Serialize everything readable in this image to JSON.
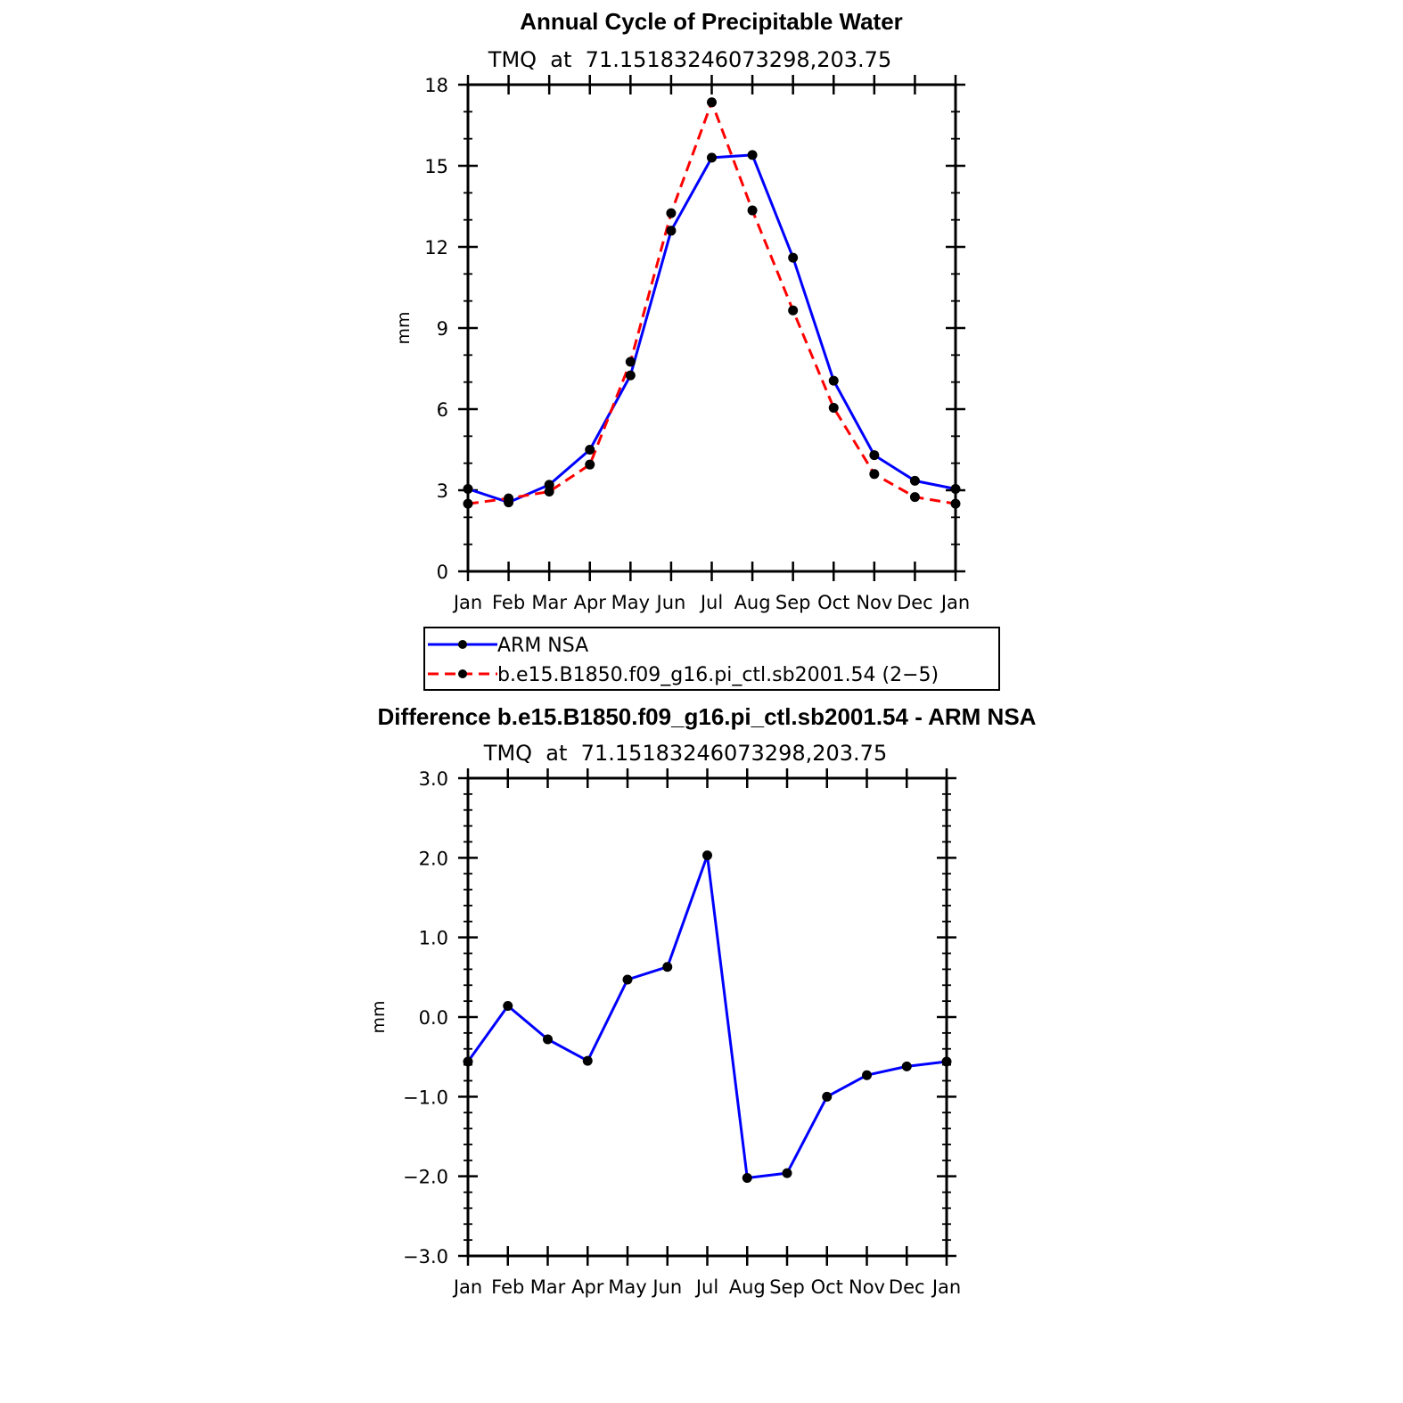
{
  "chart_data": [
    {
      "type": "line",
      "title": "Annual Cycle of Precipitable Water",
      "subtitle": "TMQ  at  71.15183246073298,203.75",
      "xlabel": "",
      "ylabel": "mm",
      "categories": [
        "Jan",
        "Feb",
        "Mar",
        "Apr",
        "May",
        "Jun",
        "Jul",
        "Aug",
        "Sep",
        "Oct",
        "Nov",
        "Dec",
        "Jan"
      ],
      "ylim": [
        0,
        18
      ],
      "yticks": [
        0,
        3,
        6,
        9,
        12,
        15,
        18
      ],
      "ytick_labels": [
        "0",
        "3",
        "6",
        "9",
        "12",
        "15",
        "18"
      ],
      "legend_position": "below",
      "series": [
        {
          "name": "ARM NSA",
          "color": "#0000ff",
          "style": "solid",
          "values": [
            3.05,
            2.55,
            3.2,
            4.5,
            7.25,
            12.6,
            15.3,
            15.4,
            11.6,
            7.05,
            4.3,
            3.35,
            3.05
          ]
        },
        {
          "name": "b.e15.B1850.f09_g16.pi_ctl.sb2001.54 (2−5)",
          "color": "#ff0000",
          "style": "dashed",
          "values": [
            2.5,
            2.7,
            2.95,
            3.95,
            7.75,
            13.25,
            17.35,
            13.35,
            9.65,
            6.05,
            3.6,
            2.75,
            2.5
          ]
        }
      ]
    },
    {
      "type": "line",
      "title": "Difference b.e15.B1850.f09_g16.pi_ctl.sb2001.54 - ARM NSA",
      "subtitle": "TMQ  at  71.15183246073298,203.75",
      "xlabel": "",
      "ylabel": "mm",
      "categories": [
        "Jan",
        "Feb",
        "Mar",
        "Apr",
        "May",
        "Jun",
        "Jul",
        "Aug",
        "Sep",
        "Oct",
        "Nov",
        "Dec",
        "Jan"
      ],
      "ylim": [
        -3.0,
        3.0
      ],
      "yticks": [
        -3,
        -2,
        -1,
        0,
        1,
        2,
        3
      ],
      "ytick_labels": [
        "−3.0",
        "−2.0",
        "−1.0",
        "0.0",
        "1.0",
        "2.0",
        "3.0"
      ],
      "series": [
        {
          "name": "",
          "color": "#0000ff",
          "style": "solid",
          "values": [
            -0.56,
            0.14,
            -0.28,
            -0.55,
            0.47,
            0.63,
            2.03,
            -2.02,
            -1.96,
            -1.0,
            -0.73,
            -0.62,
            -0.56
          ]
        }
      ]
    }
  ]
}
